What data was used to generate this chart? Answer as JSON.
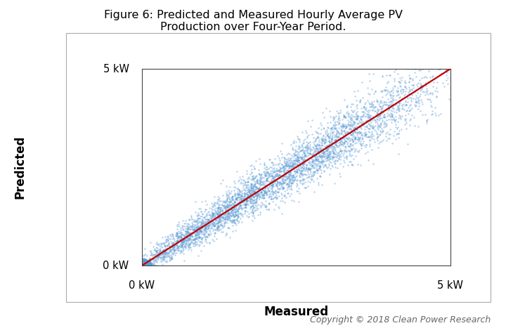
{
  "title": "Figure 6: Predicted and Measured Hourly Average PV\nProduction over Four-Year Period.",
  "xlabel": "Measured",
  "ylabel": "Predicted",
  "xlim": [
    0,
    5
  ],
  "ylim": [
    0,
    5
  ],
  "xtick_labels": [
    "0 kW",
    "5 kW"
  ],
  "xtick_positions": [
    0,
    5
  ],
  "ytick_labels": [
    "0 kW",
    "5 kW"
  ],
  "ytick_positions": [
    0,
    5
  ],
  "scatter_color": "#5B9BD5",
  "scatter_alpha": 0.45,
  "scatter_size": 3,
  "line_color": "#C00000",
  "line_width": 1.6,
  "n_points": 8760,
  "seed": 42,
  "copyright_text": "Copyright © 2018 Clean Power Research",
  "title_fontsize": 11.5,
  "xlabel_fontsize": 12,
  "ylabel_fontsize": 12,
  "tick_fontsize": 10.5,
  "copyright_fontsize": 9,
  "background_color": "#ffffff",
  "figure_background": "#ffffff",
  "outer_box_color": "#cccccc",
  "inner_box_color": "#888888"
}
